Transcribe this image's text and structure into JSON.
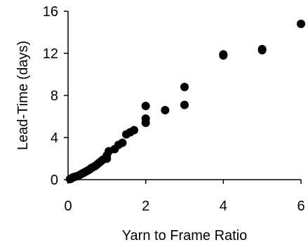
{
  "chart_data": {
    "type": "scatter",
    "xlabel": "Yarn to Frame Ratio",
    "ylabel": "Lead-Time (days)",
    "xlim": [
      0,
      6
    ],
    "ylim": [
      0,
      16
    ],
    "xticks": [
      0,
      2,
      4,
      6
    ],
    "yticks": [
      0,
      4,
      8,
      12,
      16
    ],
    "xtick_labels": [
      "0",
      "2",
      "4",
      "6"
    ],
    "ytick_labels": [
      "0",
      "4",
      "8",
      "12",
      "16"
    ],
    "grid": false,
    "legend": "none",
    "series": [
      {
        "marker": "circle",
        "color": "#000000",
        "points": [
          [
            0.05,
            0.05
          ],
          [
            0.08,
            0.1
          ],
          [
            0.1,
            0.15
          ],
          [
            0.12,
            0.2
          ],
          [
            0.15,
            0.25
          ],
          [
            0.2,
            0.3
          ],
          [
            0.25,
            0.35
          ],
          [
            0.3,
            0.45
          ],
          [
            0.35,
            0.55
          ],
          [
            0.4,
            0.65
          ],
          [
            0.45,
            0.75
          ],
          [
            0.5,
            0.85
          ],
          [
            0.55,
            0.95
          ],
          [
            0.6,
            1.1
          ],
          [
            0.65,
            1.2
          ],
          [
            0.7,
            1.3
          ],
          [
            0.75,
            1.45
          ],
          [
            0.8,
            1.6
          ],
          [
            0.85,
            1.75
          ],
          [
            0.9,
            1.9
          ],
          [
            1.0,
            2.0
          ],
          [
            1.0,
            2.3
          ],
          [
            1.05,
            2.7
          ],
          [
            1.2,
            2.9
          ],
          [
            1.3,
            3.3
          ],
          [
            1.4,
            3.5
          ],
          [
            1.5,
            4.3
          ],
          [
            1.6,
            4.5
          ],
          [
            1.7,
            4.7
          ],
          [
            2.0,
            5.4
          ],
          [
            2.0,
            5.8
          ],
          [
            2.0,
            7.0
          ],
          [
            2.5,
            6.6
          ],
          [
            3.0,
            7.1
          ],
          [
            3.0,
            8.8
          ],
          [
            4.0,
            11.8
          ],
          [
            4.0,
            11.9
          ],
          [
            5.0,
            12.3
          ],
          [
            5.0,
            12.4
          ],
          [
            6.0,
            14.8
          ]
        ]
      }
    ]
  }
}
